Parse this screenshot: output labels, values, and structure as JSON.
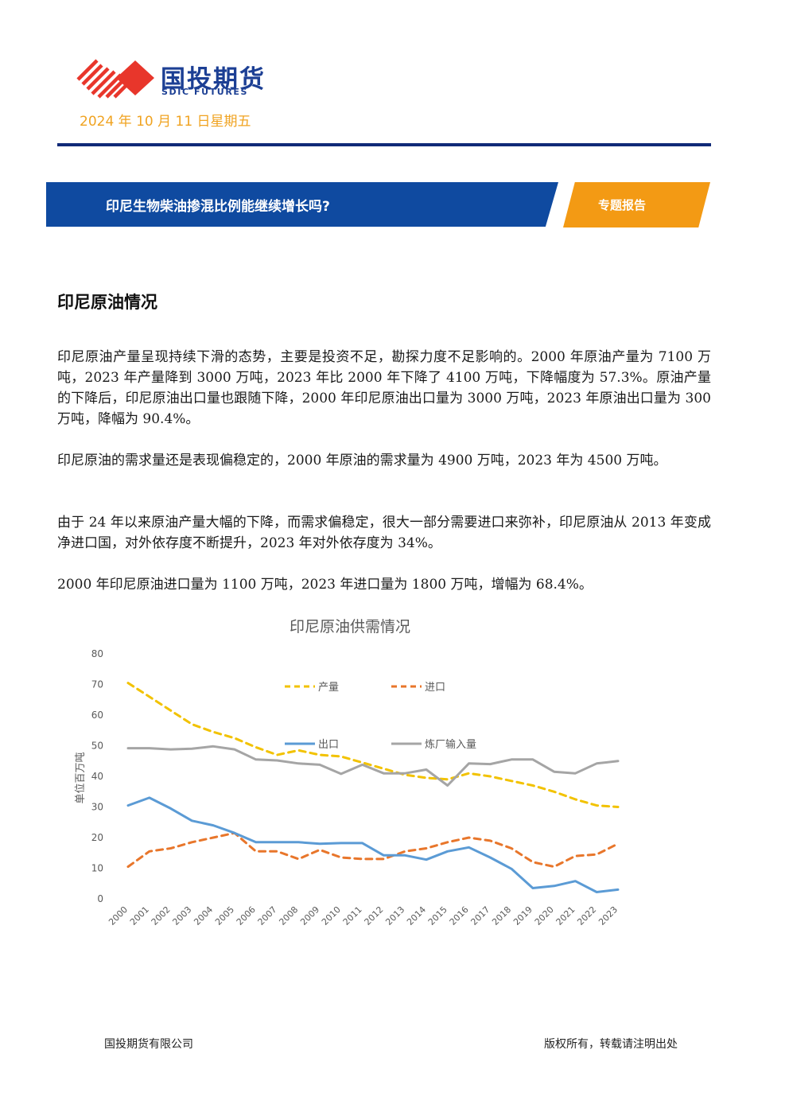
{
  "header": {
    "logo_cn": "国投期货",
    "logo_en": "SDIC FUTURES",
    "date": "2024 年 10 月 11 日星期五"
  },
  "banner": {
    "title": "印尼生物柴油掺混比例能继续增长吗?",
    "tag": "专题报告"
  },
  "section": {
    "title": "印尼原油情况",
    "paragraphs": [
      "印尼原油产量呈现持续下滑的态势，主要是投资不足，勘探力度不足影响的。2000 年原油产量为 7100 万吨，2023 年产量降到 3000 万吨，2023 年比 2000 年下降了 4100 万吨，下降幅度为 57.3%。原油产量的下降后，印尼原油出口量也跟随下降，2000 年印尼原油出口量为 3000 万吨，2023 年原油出口量为 300 万吨，降幅为 90.4%。",
      "印尼原油的需求量还是表现偏稳定的，2000 年原油的需求量为 4900 万吨，2023 年为 4500 万吨。",
      "由于 24 年以来原油产量大幅的下降，而需求偏稳定，很大一部分需要进口来弥补，印尼原油从 2013 年变成净进口国，对外依存度不断提升，2023 年对外依存度为 34%。",
      "2000 年印尼原油进口量为 1100 万吨，2023 年进口量为 1800 万吨，增幅为 68.4%。"
    ]
  },
  "chart_data": {
    "type": "line",
    "title": "印尼原油供需情况",
    "ylabel": "单位百万吨",
    "xlabel": "",
    "ylim": [
      0,
      80
    ],
    "yticks": [
      0,
      10,
      20,
      30,
      40,
      50,
      60,
      70,
      80
    ],
    "grid": false,
    "x": [
      "2000",
      "2001",
      "2002",
      "2003",
      "2004",
      "2005",
      "2006",
      "2007",
      "2008",
      "2009",
      "2010",
      "2011",
      "2012",
      "2013",
      "2014",
      "2015",
      "2016",
      "2017",
      "2018",
      "2019",
      "2020",
      "2021",
      "2022",
      "2023"
    ],
    "series": [
      {
        "name": "产量",
        "color": "#f2c200",
        "style": "dashed",
        "values": [
          70.5,
          66,
          61.5,
          57,
          54.5,
          52.5,
          49.5,
          47,
          48.5,
          47,
          46.5,
          44.5,
          42.5,
          40.5,
          39.5,
          39,
          41,
          40,
          38.5,
          37,
          35,
          32.5,
          30.5,
          30
        ]
      },
      {
        "name": "进口",
        "color": "#e8762b",
        "style": "dashed",
        "values": [
          10.5,
          15.5,
          16.5,
          18.5,
          20,
          21.5,
          15.5,
          15.5,
          13,
          16,
          13.5,
          13,
          13,
          15.5,
          16.5,
          18.5,
          20,
          19,
          16.5,
          12,
          10.5,
          14,
          14.5,
          18
        ]
      },
      {
        "name": "出口",
        "color": "#5b9bd5",
        "style": "solid",
        "values": [
          30.5,
          33,
          29.5,
          25.5,
          24,
          21.5,
          18.5,
          18.5,
          18.5,
          18,
          18.2,
          18.2,
          14.2,
          14.2,
          12.8,
          15.5,
          16.8,
          13.5,
          9.8,
          3.5,
          4.2,
          5.8,
          2.2,
          3
        ]
      },
      {
        "name": "炼厂输入量",
        "color": "#a5a5a5",
        "style": "solid",
        "values": [
          49.2,
          49.2,
          48.8,
          49,
          49.8,
          48.8,
          45.5,
          45.2,
          44.2,
          43.8,
          40.8,
          43.8,
          41,
          41,
          42.2,
          37,
          44.2,
          44,
          45.5,
          45.5,
          41.5,
          41,
          44.2,
          45
        ]
      }
    ]
  },
  "footer": {
    "company": "国投期货有限公司",
    "copyright": "版权所有，转载请注明出处"
  }
}
